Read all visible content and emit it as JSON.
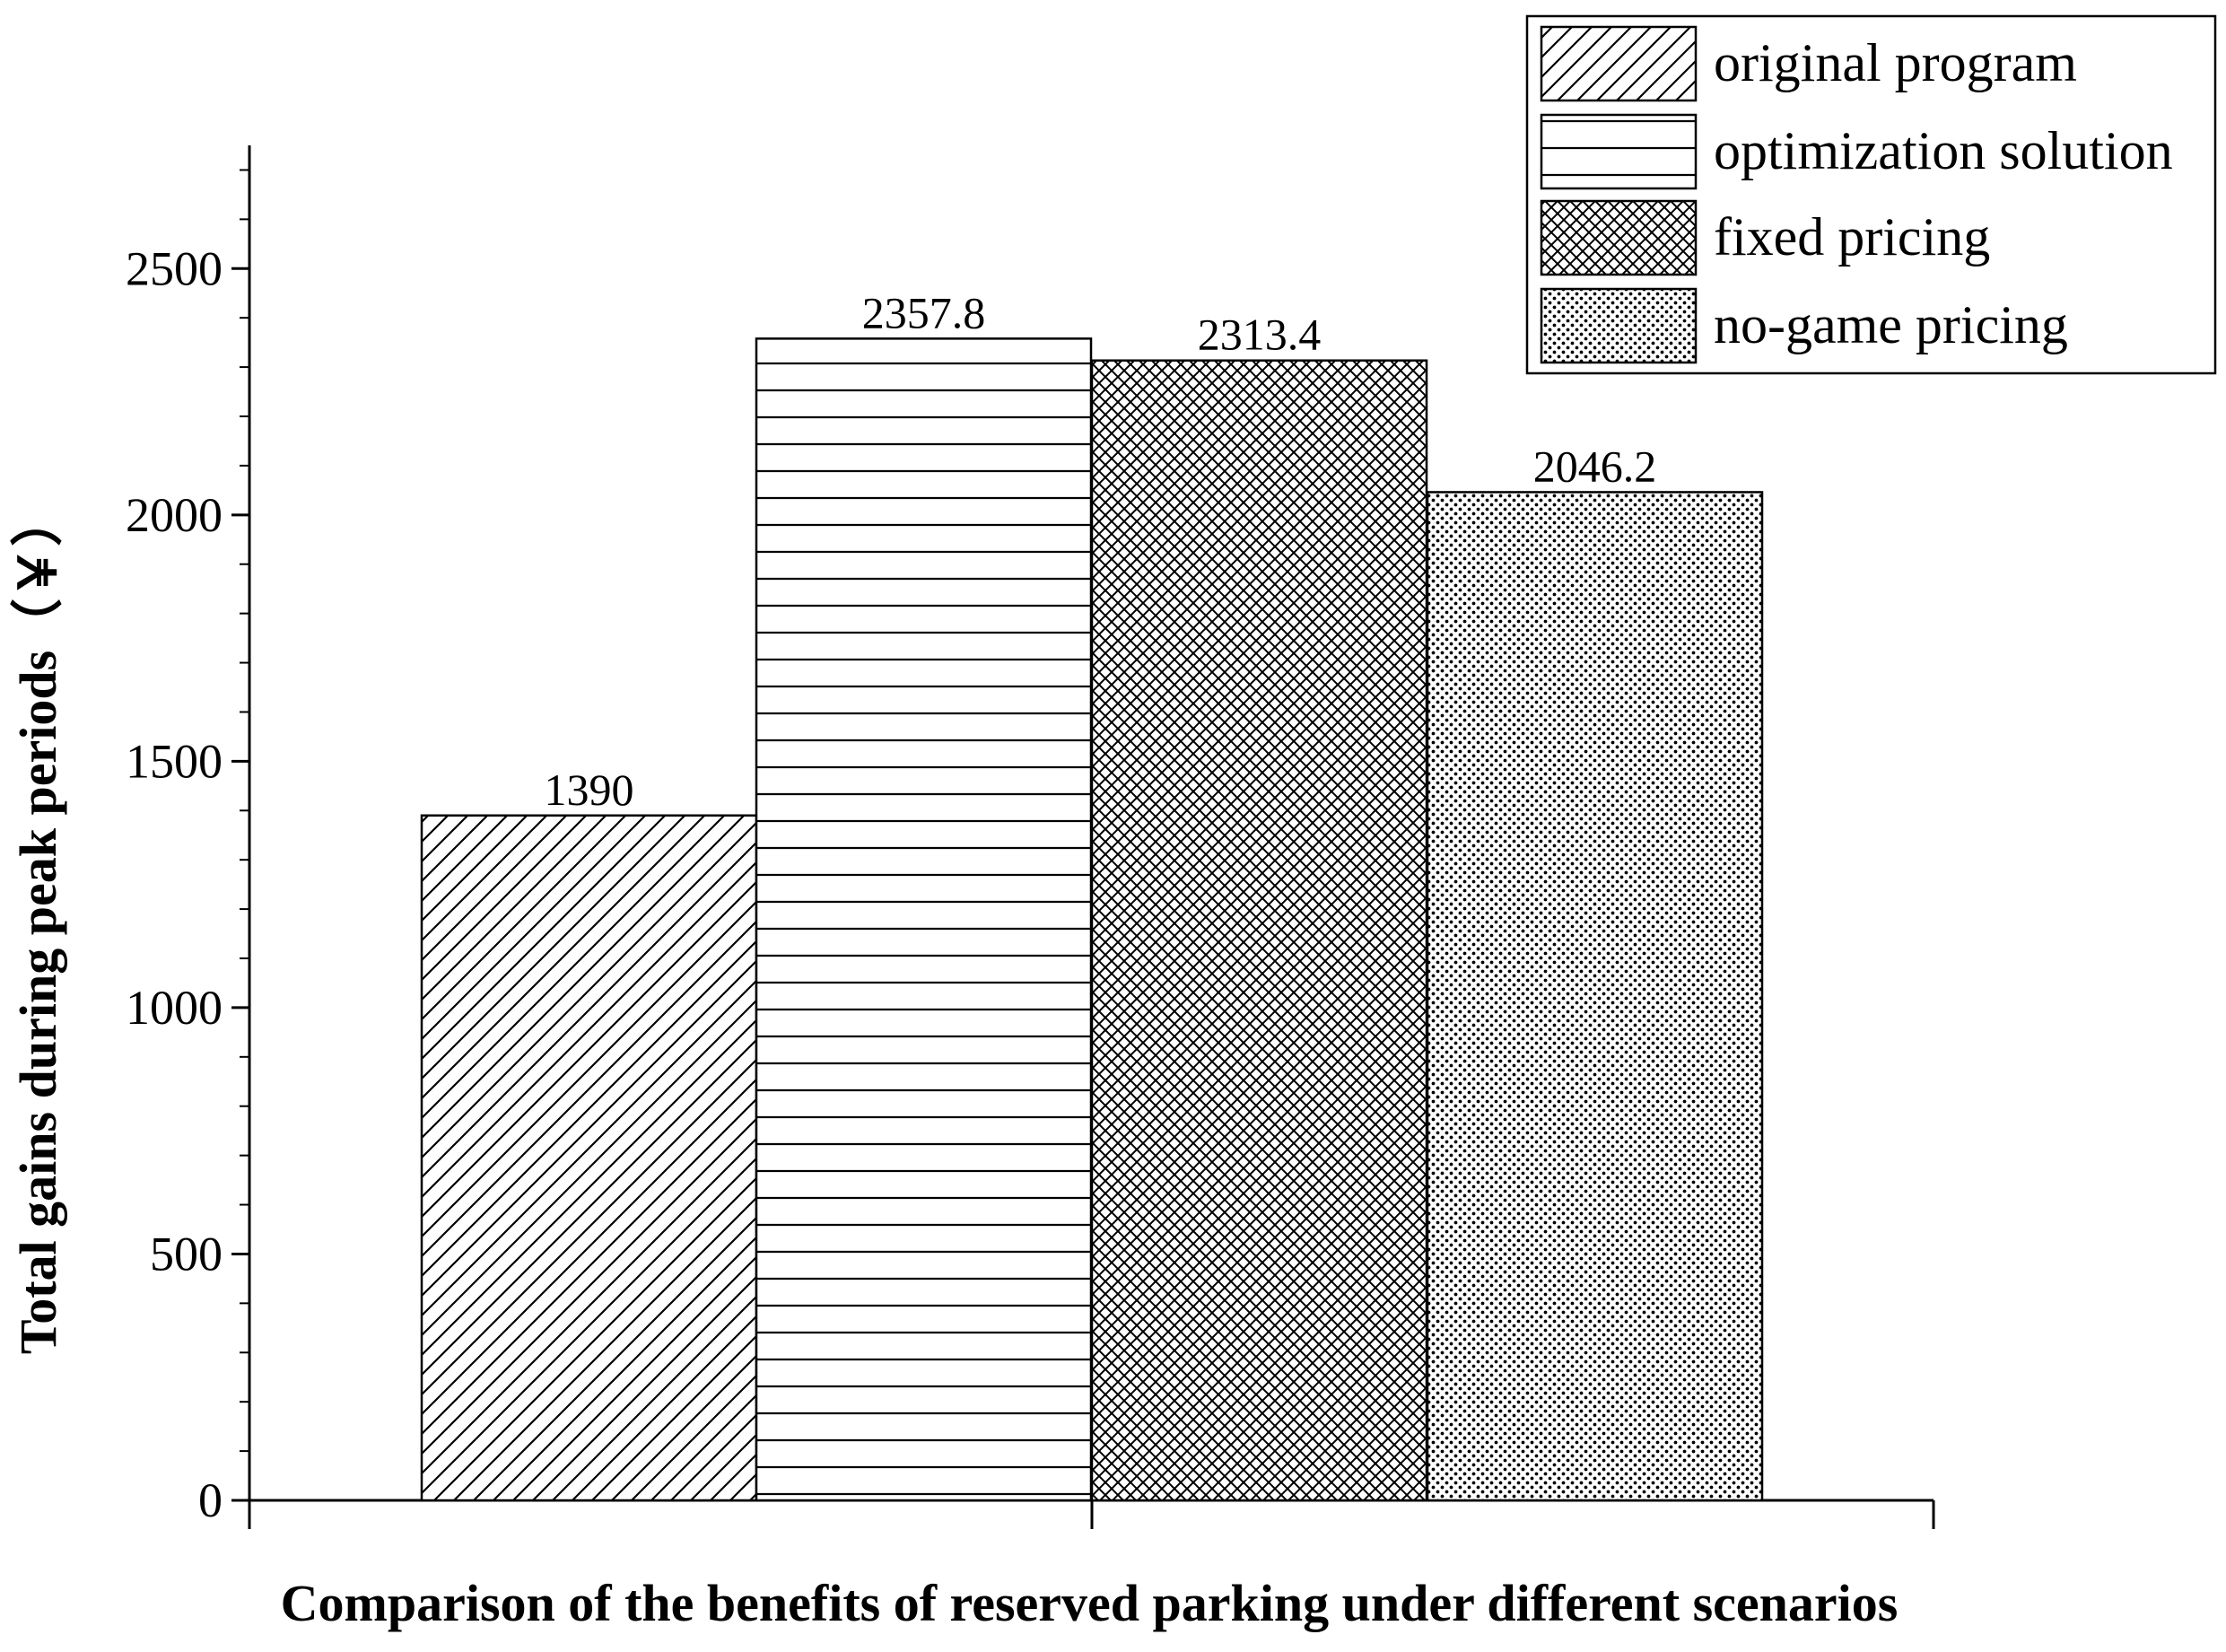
{
  "chart_data": {
    "type": "bar",
    "title": "",
    "xlabel": "Comparison of the benefits of reserved parking under different scenarios",
    "ylabel": "Total gains during peak periods（￥）",
    "ylim": [
      0,
      2750
    ],
    "yticks": [
      0,
      500,
      1000,
      1500,
      2000,
      2500
    ],
    "grid": false,
    "legend_position": "top-right",
    "series": [
      {
        "name": "original program",
        "value": 1390,
        "label": "1390",
        "pattern": "diagonal-hatch"
      },
      {
        "name": "optimization solution",
        "value": 2357.8,
        "label": "2357.8",
        "pattern": "horizontal-lines"
      },
      {
        "name": "fixed pricing",
        "value": 2313.4,
        "label": "2313.4",
        "pattern": "crosshatch"
      },
      {
        "name": "no-game pricing",
        "value": 2046.2,
        "label": "2046.2",
        "pattern": "dots"
      }
    ],
    "colors": {
      "stroke": "#000000",
      "background": "#ffffff"
    }
  }
}
